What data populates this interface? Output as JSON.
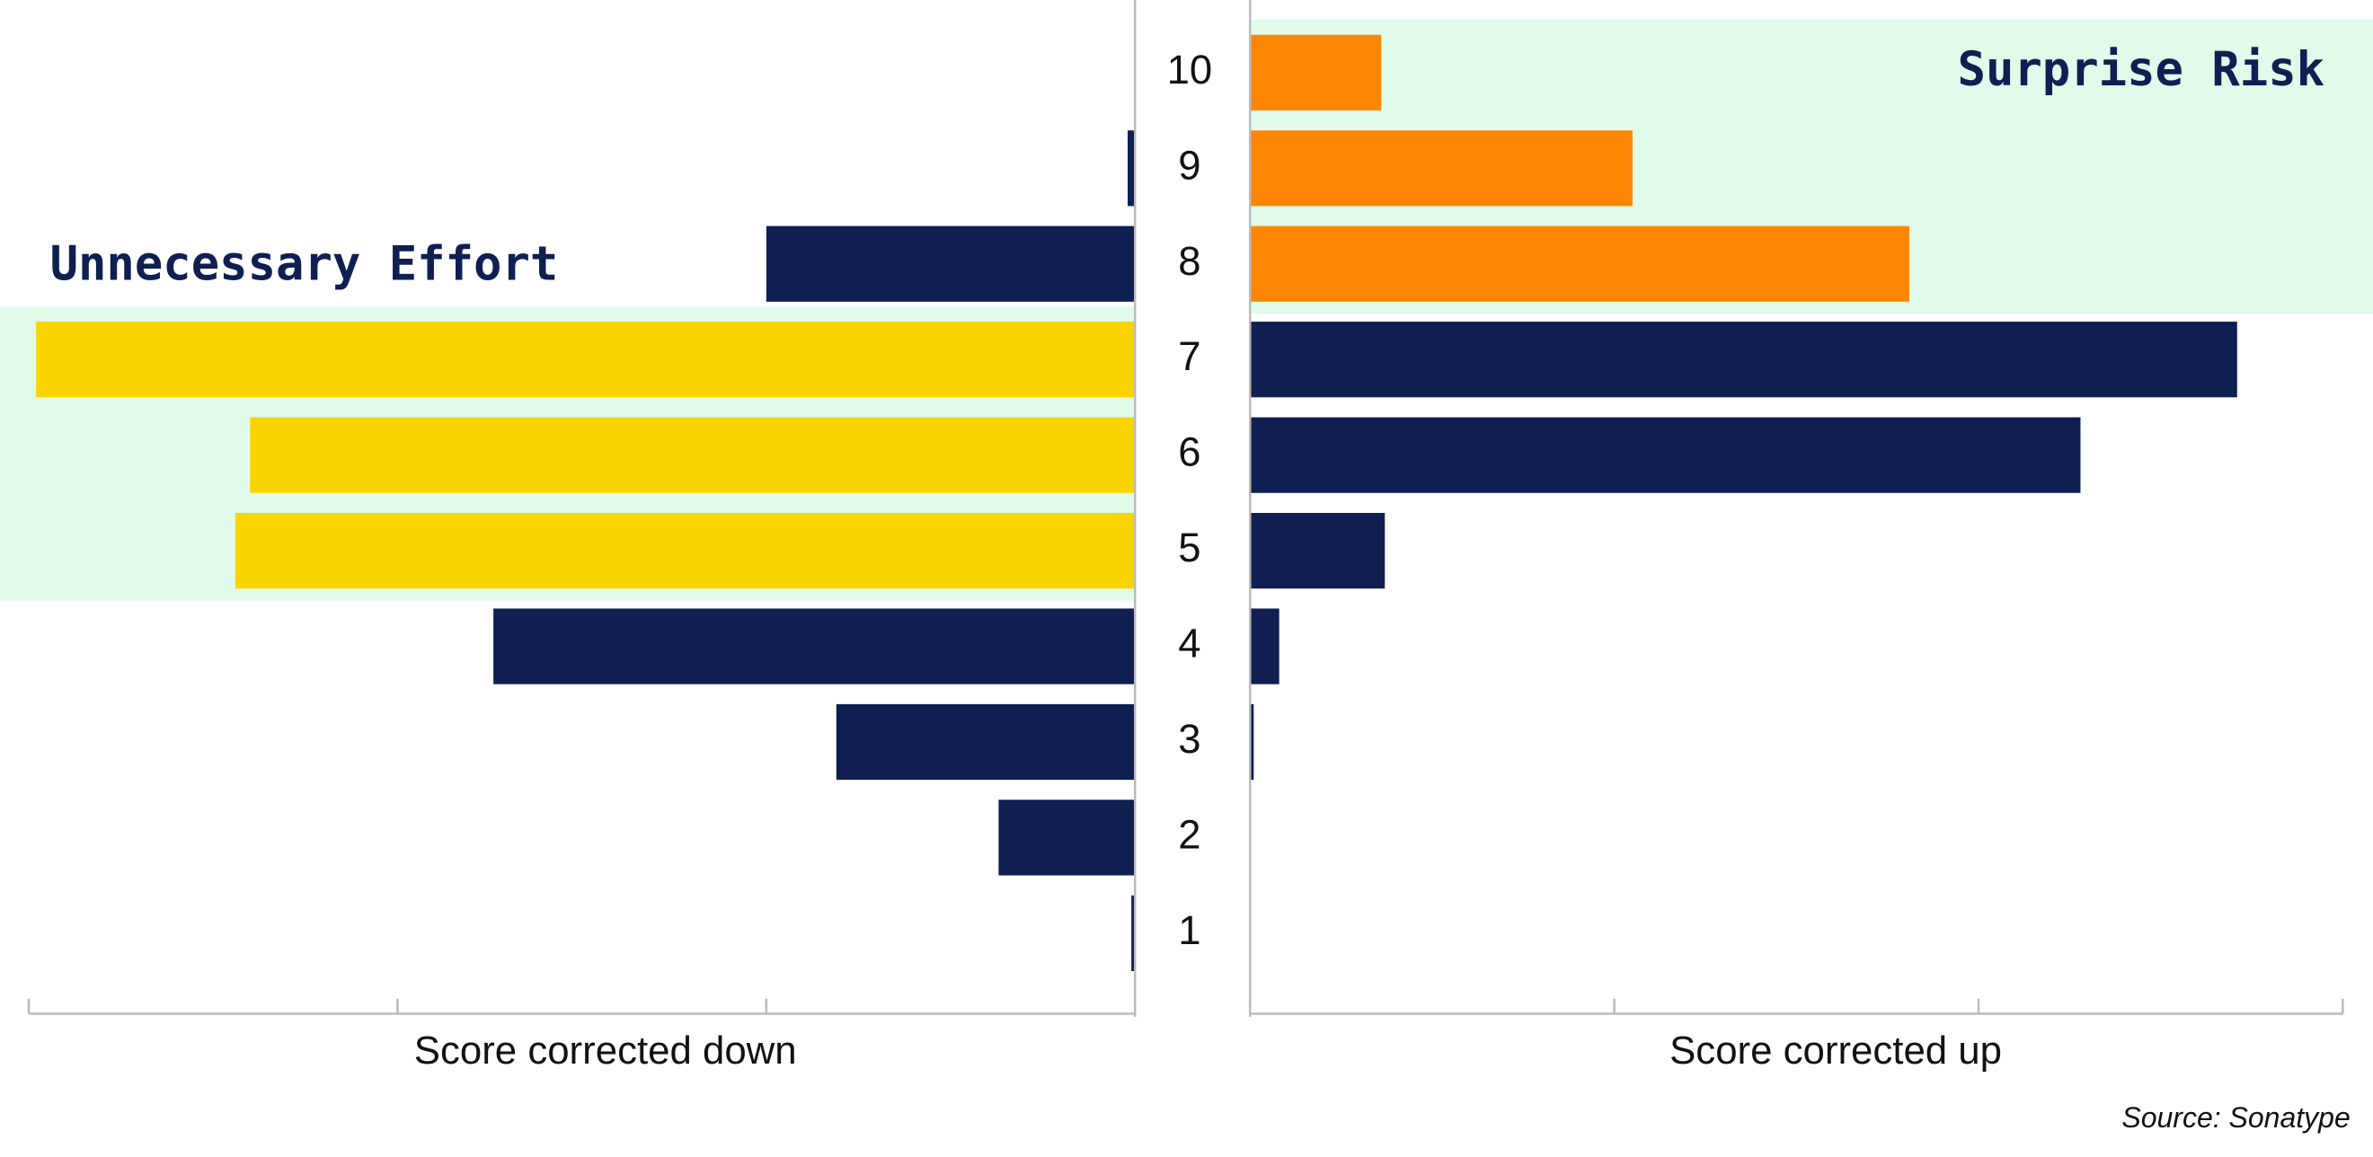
{
  "chart_data": {
    "type": "butterfly",
    "categories": [
      "10",
      "9",
      "8",
      "7",
      "6",
      "5",
      "4",
      "3",
      "2",
      "1"
    ],
    "series": [
      {
        "name": "Score corrected down",
        "annotation": "Unnecessary Effort",
        "color": "#0f1f52",
        "colors": [
          "#0f1f52",
          "#0f1f52",
          "#0f1f52",
          "#fad400",
          "#fad400",
          "#fad400",
          "#0f1f52",
          "#0f1f52",
          "#0f1f52",
          "#0f1f52"
        ],
        "values": [
          0,
          0.02,
          1.0,
          2.98,
          2.4,
          2.44,
          1.74,
          0.81,
          0.37,
          0.01
        ]
      },
      {
        "name": "Score corrected up",
        "annotation": "Surprise Risk",
        "color": "#0f1f52",
        "colors": [
          "#ff8605",
          "#ff8605",
          "#ff8605",
          "#0f1f52",
          "#0f1f52",
          "#0f1f52",
          "#0f1f52",
          "#0f1f52",
          "#0f1f52",
          "#0f1f52"
        ],
        "values": [
          0.36,
          1.05,
          1.81,
          2.71,
          2.28,
          0.37,
          0.08,
          0.01,
          0,
          0
        ]
      }
    ],
    "xlim": [
      0,
      3
    ],
    "xticks": [
      0,
      1,
      2,
      3
    ],
    "highlight_color": "#e0fbe9",
    "source": "Source: Sonatype"
  }
}
